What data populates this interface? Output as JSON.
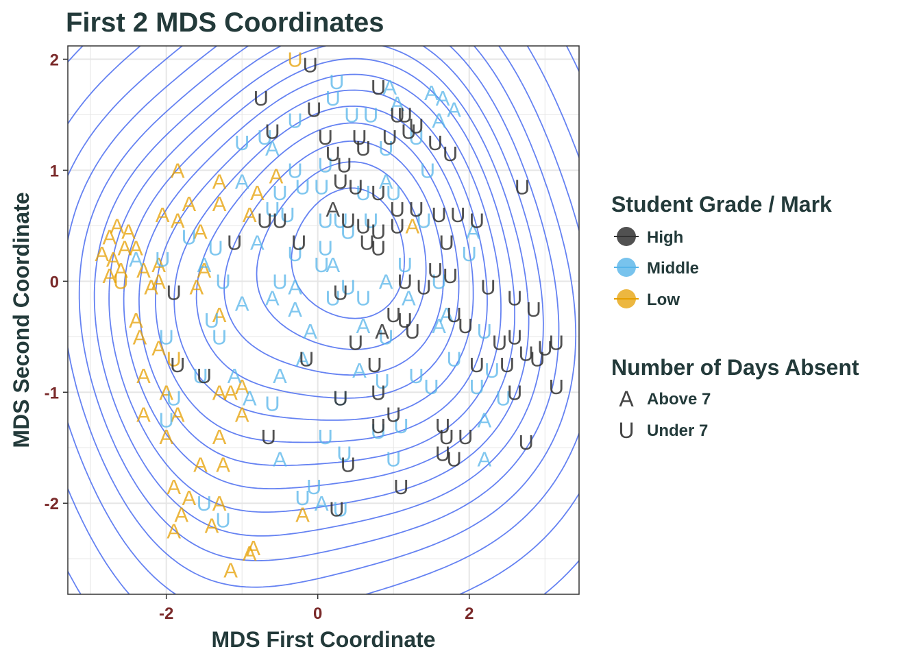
{
  "chart_data": {
    "type": "scatter",
    "title": "First 2 MDS Coordinates",
    "xlabel": "MDS First Coordinate",
    "ylabel": "MDS Second Coordinate",
    "xlim": [
      -3.3,
      3.45
    ],
    "ylim": [
      -2.82,
      2.12
    ],
    "xticks": [
      -2,
      0,
      2
    ],
    "yticks": [
      -2,
      -1,
      0,
      1,
      2
    ],
    "grid": true,
    "legend_position": "right",
    "legends": [
      {
        "title": "Student Grade / Mark",
        "entries": [
          {
            "key": "high",
            "label": "High",
            "color": "#333333"
          },
          {
            "key": "middle",
            "label": "Middle",
            "color": "#56b4e9"
          },
          {
            "key": "low",
            "label": "Low",
            "color": "#e69f00"
          }
        ]
      },
      {
        "title": "Number of Days Absent",
        "entries": [
          {
            "key": "A",
            "label": "Above 7",
            "symbol": "A"
          },
          {
            "key": "U",
            "label": "Under 7",
            "symbol": "U"
          }
        ]
      }
    ],
    "contour_color": "#4a6cf0",
    "series": [
      {
        "name": "Low",
        "color": "#e69f00",
        "points": [
          [
            -0.3,
            2.0,
            "U"
          ],
          [
            -1.85,
            1.0,
            "A"
          ],
          [
            -1.3,
            0.9,
            "A"
          ],
          [
            -0.8,
            0.8,
            "A"
          ],
          [
            -0.55,
            0.95,
            "A"
          ],
          [
            -1.7,
            0.7,
            "A"
          ],
          [
            -1.3,
            0.7,
            "A"
          ],
          [
            -0.9,
            0.6,
            "A"
          ],
          [
            -2.05,
            0.6,
            "A"
          ],
          [
            -1.85,
            0.55,
            "A"
          ],
          [
            -1.55,
            0.45,
            "A"
          ],
          [
            -2.65,
            0.5,
            "A"
          ],
          [
            -2.5,
            0.45,
            "A"
          ],
          [
            -2.75,
            0.4,
            "A"
          ],
          [
            -2.55,
            0.3,
            "A"
          ],
          [
            -2.4,
            0.3,
            "A"
          ],
          [
            -2.85,
            0.25,
            "A"
          ],
          [
            -2.7,
            0.2,
            "A"
          ],
          [
            -2.6,
            0.1,
            "A"
          ],
          [
            -2.1,
            0.15,
            "A"
          ],
          [
            -2.3,
            0.1,
            "A"
          ],
          [
            -2.75,
            0.05,
            "A"
          ],
          [
            -2.6,
            0.0,
            "U"
          ],
          [
            -2.1,
            0.0,
            "A"
          ],
          [
            -1.6,
            -0.05,
            "A"
          ],
          [
            -1.5,
            0.1,
            "A"
          ],
          [
            -2.2,
            -0.05,
            "A"
          ],
          [
            -1.3,
            -0.3,
            "A"
          ],
          [
            -2.4,
            -0.35,
            "A"
          ],
          [
            -2.35,
            -0.5,
            "A"
          ],
          [
            -2.1,
            -0.6,
            "A"
          ],
          [
            -1.9,
            -0.7,
            "U"
          ],
          [
            -2.3,
            -0.85,
            "A"
          ],
          [
            -2.0,
            -1.0,
            "A"
          ],
          [
            -1.3,
            -1.0,
            "A"
          ],
          [
            -1.15,
            -1.0,
            "A"
          ],
          [
            -1.0,
            -0.95,
            "A"
          ],
          [
            -2.3,
            -1.2,
            "A"
          ],
          [
            -1.85,
            -1.2,
            "A"
          ],
          [
            -1.0,
            -1.2,
            "A"
          ],
          [
            -1.3,
            -1.4,
            "A"
          ],
          [
            -2.0,
            -1.4,
            "A"
          ],
          [
            -1.55,
            -1.65,
            "A"
          ],
          [
            -1.25,
            -1.65,
            "A"
          ],
          [
            -1.9,
            -1.85,
            "A"
          ],
          [
            -1.7,
            -1.95,
            "A"
          ],
          [
            -1.3,
            -2.0,
            "A"
          ],
          [
            -1.8,
            -2.1,
            "A"
          ],
          [
            -1.4,
            -2.2,
            "A"
          ],
          [
            -1.9,
            -2.25,
            "A"
          ],
          [
            -0.2,
            -2.1,
            "A"
          ],
          [
            -0.85,
            -2.4,
            "A"
          ],
          [
            -0.9,
            -2.45,
            "A"
          ],
          [
            -1.15,
            -2.6,
            "A"
          ],
          [
            1.25,
            0.5,
            "A"
          ]
        ]
      },
      {
        "name": "Middle",
        "color": "#56b4e9",
        "points": [
          [
            0.25,
            1.8,
            "U"
          ],
          [
            0.95,
            1.75,
            "A"
          ],
          [
            1.5,
            1.7,
            "A"
          ],
          [
            1.65,
            1.65,
            "A"
          ],
          [
            0.2,
            1.65,
            "U"
          ],
          [
            1.05,
            1.6,
            "A"
          ],
          [
            1.8,
            1.55,
            "A"
          ],
          [
            -0.3,
            1.45,
            "U"
          ],
          [
            0.45,
            1.5,
            "U"
          ],
          [
            0.7,
            1.5,
            "U"
          ],
          [
            1.6,
            1.45,
            "A"
          ],
          [
            -0.7,
            1.3,
            "U"
          ],
          [
            -1.0,
            1.25,
            "U"
          ],
          [
            -0.6,
            1.2,
            "A"
          ],
          [
            0.9,
            1.2,
            "U"
          ],
          [
            1.3,
            1.3,
            "U"
          ],
          [
            -0.3,
            1.0,
            "U"
          ],
          [
            0.1,
            1.05,
            "U"
          ],
          [
            0.9,
            0.9,
            "A"
          ],
          [
            1.45,
            1.0,
            "U"
          ],
          [
            -1.0,
            0.9,
            "A"
          ],
          [
            -0.5,
            0.8,
            "U"
          ],
          [
            -0.2,
            0.85,
            "U"
          ],
          [
            0.05,
            0.85,
            "U"
          ],
          [
            0.6,
            0.8,
            "U"
          ],
          [
            1.0,
            0.8,
            "U"
          ],
          [
            -0.6,
            0.65,
            "U"
          ],
          [
            -0.4,
            0.6,
            "U"
          ],
          [
            0.1,
            0.55,
            "U"
          ],
          [
            0.3,
            0.55,
            "U"
          ],
          [
            0.7,
            0.55,
            "U"
          ],
          [
            1.4,
            0.55,
            "U"
          ],
          [
            -1.7,
            0.4,
            "U"
          ],
          [
            -1.35,
            0.3,
            "U"
          ],
          [
            -0.8,
            0.35,
            "A"
          ],
          [
            -0.3,
            0.25,
            "U"
          ],
          [
            0.1,
            0.3,
            "U"
          ],
          [
            0.4,
            0.45,
            "U"
          ],
          [
            2.05,
            0.45,
            "A"
          ],
          [
            2.0,
            0.25,
            "U"
          ],
          [
            -2.4,
            0.2,
            "A"
          ],
          [
            -2.05,
            0.2,
            "U"
          ],
          [
            -1.5,
            0.15,
            "A"
          ],
          [
            0.05,
            0.15,
            "U"
          ],
          [
            0.2,
            0.15,
            "A"
          ],
          [
            1.15,
            0.15,
            "U"
          ],
          [
            -1.25,
            0.0,
            "U"
          ],
          [
            -0.5,
            0.0,
            "U"
          ],
          [
            -0.3,
            -0.05,
            "A"
          ],
          [
            0.4,
            -0.05,
            "U"
          ],
          [
            0.9,
            0.0,
            "A"
          ],
          [
            1.6,
            0.0,
            "U"
          ],
          [
            -1.0,
            -0.2,
            "A"
          ],
          [
            -0.6,
            -0.15,
            "A"
          ],
          [
            -0.3,
            -0.25,
            "A"
          ],
          [
            0.2,
            -0.15,
            "U"
          ],
          [
            0.6,
            -0.15,
            "U"
          ],
          [
            1.2,
            -0.15,
            "A"
          ],
          [
            1.7,
            -0.3,
            "A"
          ],
          [
            -1.4,
            -0.35,
            "U"
          ],
          [
            -0.1,
            -0.45,
            "A"
          ],
          [
            0.6,
            -0.4,
            "A"
          ],
          [
            1.6,
            -0.4,
            "A"
          ],
          [
            2.2,
            -0.45,
            "U"
          ],
          [
            -2.0,
            -0.5,
            "U"
          ],
          [
            -1.3,
            -0.5,
            "U"
          ],
          [
            -0.2,
            -0.7,
            "A"
          ],
          [
            0.9,
            -0.5,
            "U"
          ],
          [
            1.8,
            -0.7,
            "U"
          ],
          [
            2.3,
            -0.8,
            "U"
          ],
          [
            -1.55,
            -0.85,
            "U"
          ],
          [
            -1.1,
            -0.85,
            "A"
          ],
          [
            -0.5,
            -0.85,
            "A"
          ],
          [
            0.55,
            -0.8,
            "A"
          ],
          [
            1.3,
            -0.85,
            "U"
          ],
          [
            2.1,
            -0.95,
            "U"
          ],
          [
            -1.9,
            -1.05,
            "U"
          ],
          [
            -0.9,
            -1.05,
            "A"
          ],
          [
            -0.6,
            -1.1,
            "U"
          ],
          [
            0.3,
            -1.05,
            "U"
          ],
          [
            0.85,
            -0.9,
            "U"
          ],
          [
            1.5,
            -0.95,
            "U"
          ],
          [
            2.45,
            -1.05,
            "U"
          ],
          [
            -2.0,
            -1.25,
            "U"
          ],
          [
            0.1,
            -1.4,
            "U"
          ],
          [
            0.8,
            -1.35,
            "U"
          ],
          [
            1.1,
            -1.3,
            "U"
          ],
          [
            2.2,
            -1.25,
            "A"
          ],
          [
            -0.5,
            -1.6,
            "A"
          ],
          [
            0.35,
            -1.55,
            "U"
          ],
          [
            1.0,
            -1.6,
            "U"
          ],
          [
            2.2,
            -1.6,
            "A"
          ],
          [
            -0.05,
            -1.85,
            "U"
          ],
          [
            -0.2,
            -1.95,
            "U"
          ],
          [
            0.3,
            -2.05,
            "U"
          ],
          [
            -1.5,
            -2.0,
            "U"
          ],
          [
            -1.25,
            -2.15,
            "U"
          ],
          [
            0.05,
            -2.0,
            "A"
          ]
        ]
      },
      {
        "name": "High",
        "color": "#333333",
        "points": [
          [
            -0.1,
            1.95,
            "U"
          ],
          [
            0.8,
            1.75,
            "U"
          ],
          [
            -0.75,
            1.65,
            "U"
          ],
          [
            -0.05,
            1.55,
            "U"
          ],
          [
            1.05,
            1.5,
            "U"
          ],
          [
            1.15,
            1.5,
            "U"
          ],
          [
            1.2,
            1.35,
            "U"
          ],
          [
            1.3,
            1.4,
            "U"
          ],
          [
            0.95,
            1.3,
            "U"
          ],
          [
            -0.6,
            1.35,
            "U"
          ],
          [
            0.1,
            1.3,
            "U"
          ],
          [
            0.55,
            1.3,
            "U"
          ],
          [
            1.55,
            1.25,
            "U"
          ],
          [
            0.2,
            1.15,
            "U"
          ],
          [
            0.35,
            1.05,
            "U"
          ],
          [
            0.6,
            1.2,
            "U"
          ],
          [
            1.75,
            1.15,
            "U"
          ],
          [
            0.3,
            0.9,
            "U"
          ],
          [
            0.5,
            0.85,
            "U"
          ],
          [
            0.8,
            0.8,
            "U"
          ],
          [
            2.7,
            0.85,
            "U"
          ],
          [
            0.2,
            0.65,
            "A"
          ],
          [
            0.4,
            0.55,
            "U"
          ],
          [
            1.05,
            0.65,
            "U"
          ],
          [
            1.3,
            0.65,
            "U"
          ],
          [
            1.6,
            0.6,
            "U"
          ],
          [
            1.85,
            0.6,
            "U"
          ],
          [
            2.1,
            0.55,
            "U"
          ],
          [
            -0.7,
            0.55,
            "U"
          ],
          [
            -0.5,
            0.55,
            "U"
          ],
          [
            0.6,
            0.5,
            "U"
          ],
          [
            0.8,
            0.45,
            "U"
          ],
          [
            1.05,
            0.5,
            "U"
          ],
          [
            -1.1,
            0.35,
            "U"
          ],
          [
            -0.25,
            0.35,
            "U"
          ],
          [
            0.65,
            0.35,
            "U"
          ],
          [
            0.8,
            0.3,
            "U"
          ],
          [
            1.7,
            0.35,
            "U"
          ],
          [
            1.55,
            0.1,
            "U"
          ],
          [
            1.75,
            0.05,
            "U"
          ],
          [
            1.15,
            0.0,
            "U"
          ],
          [
            1.4,
            -0.05,
            "U"
          ],
          [
            2.25,
            -0.05,
            "U"
          ],
          [
            0.3,
            -0.1,
            "U"
          ],
          [
            -1.9,
            -0.1,
            "U"
          ],
          [
            1.0,
            -0.3,
            "U"
          ],
          [
            1.15,
            -0.35,
            "U"
          ],
          [
            1.25,
            -0.45,
            "U"
          ],
          [
            1.8,
            -0.3,
            "U"
          ],
          [
            1.95,
            -0.4,
            "U"
          ],
          [
            2.6,
            -0.15,
            "U"
          ],
          [
            2.85,
            -0.25,
            "U"
          ],
          [
            0.85,
            -0.45,
            "A"
          ],
          [
            0.5,
            -0.55,
            "U"
          ],
          [
            2.4,
            -0.55,
            "U"
          ],
          [
            2.6,
            -0.5,
            "U"
          ],
          [
            2.75,
            -0.65,
            "U"
          ],
          [
            2.9,
            -0.7,
            "U"
          ],
          [
            3.0,
            -0.6,
            "U"
          ],
          [
            3.15,
            -0.55,
            "U"
          ],
          [
            -0.15,
            -0.7,
            "U"
          ],
          [
            0.75,
            -0.75,
            "U"
          ],
          [
            2.1,
            -0.75,
            "U"
          ],
          [
            2.5,
            -0.75,
            "U"
          ],
          [
            -1.85,
            -0.75,
            "U"
          ],
          [
            -1.5,
            -0.85,
            "U"
          ],
          [
            0.3,
            -1.05,
            "U"
          ],
          [
            0.8,
            -1.0,
            "U"
          ],
          [
            1.0,
            -1.2,
            "U"
          ],
          [
            2.6,
            -1.0,
            "U"
          ],
          [
            3.15,
            -0.95,
            "U"
          ],
          [
            0.8,
            -1.3,
            "U"
          ],
          [
            1.65,
            -1.3,
            "U"
          ],
          [
            1.7,
            -1.4,
            "U"
          ],
          [
            1.95,
            -1.4,
            "U"
          ],
          [
            2.75,
            -1.45,
            "U"
          ],
          [
            -0.65,
            -1.4,
            "U"
          ],
          [
            1.65,
            -1.55,
            "U"
          ],
          [
            1.8,
            -1.6,
            "U"
          ],
          [
            0.4,
            -1.65,
            "U"
          ],
          [
            1.1,
            -1.85,
            "U"
          ],
          [
            0.25,
            -2.05,
            "U"
          ]
        ]
      }
    ]
  }
}
